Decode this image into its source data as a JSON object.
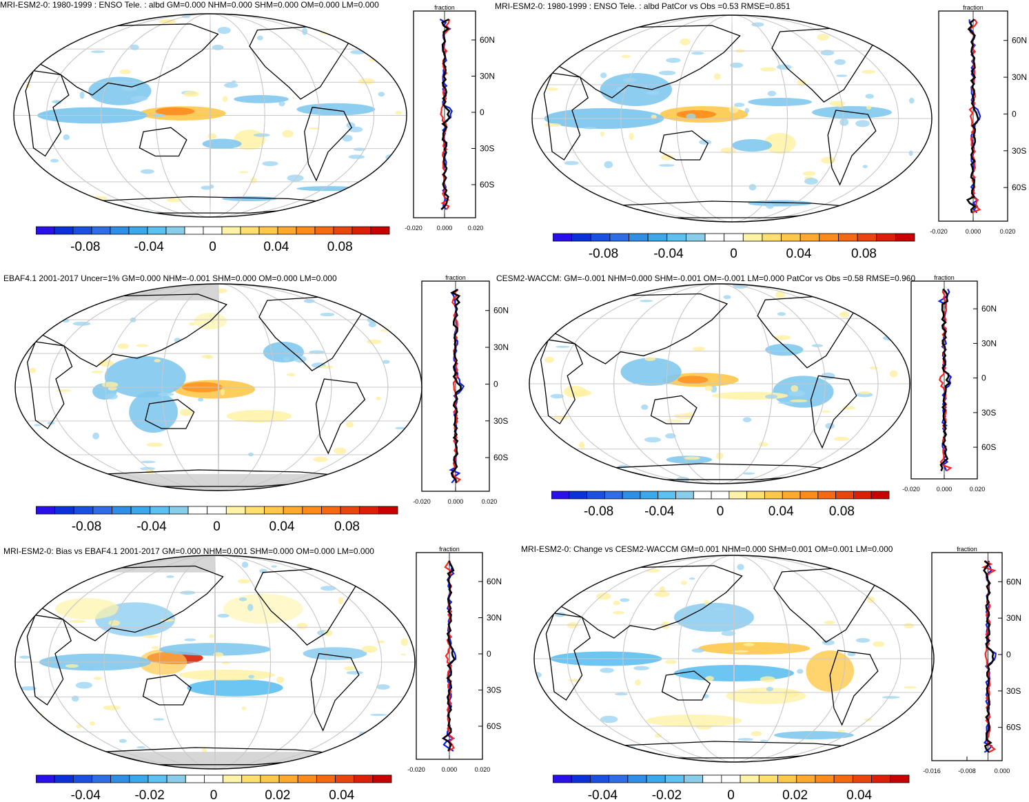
{
  "panels": [
    {
      "title": "MRI-ESM2-0: 1980-1999 : ENSO Tele. : albd GM=0.000 NHM=0.000 SHM=0.000 OM=0.000 LM=0.000",
      "colorbar_labels": [
        "-0.08",
        "-0.04",
        "0",
        "0.04",
        "0.08"
      ],
      "profile": {
        "label": "fraction",
        "lat_ticks": [
          "60N",
          "30N",
          "0",
          "30S",
          "60S"
        ],
        "x_ticks": [
          "-0.020",
          "0.000",
          "0.020"
        ]
      }
    },
    {
      "title": "MRI-ESM2-0: 1980-1999 : ENSO Tele. : albd PatCor vs Obs =0.53 RMSE=0.851",
      "colorbar_labels": [
        "-0.08",
        "-0.04",
        "0",
        "0.04",
        "0.08"
      ],
      "profile": {
        "label": "fraction",
        "lat_ticks": [
          "60N",
          "30N",
          "0",
          "30S",
          "60S"
        ],
        "x_ticks": [
          "-0.020",
          "0.000",
          "0.020"
        ]
      }
    },
    {
      "title": "EBAF4.1 2001-2017 Uncer=1% GM=0.000 NHM=-0.001 SHM=0.000 OM=0.000 LM=0.000",
      "colorbar_labels": [
        "-0.08",
        "-0.04",
        "0",
        "0.04",
        "0.08"
      ],
      "profile": {
        "label": "fraction",
        "lat_ticks": [
          "60N",
          "30N",
          "0",
          "30S",
          "60S"
        ],
        "x_ticks": [
          "-0.020",
          "0.000",
          "0.020"
        ]
      }
    },
    {
      "title": "CESM2-WACCM: GM=-0.001 NHM=0.000 SHM=-0.001 OM=-0.001 LM=0.000 PatCor vs Obs =0.58 RMSE=0.960",
      "colorbar_labels": [
        "-0.08",
        "-0.04",
        "0",
        "0.04",
        "0.08"
      ],
      "profile": {
        "label": "fraction",
        "lat_ticks": [
          "60N",
          "30N",
          "0",
          "30S",
          "60S"
        ],
        "x_ticks": [
          "-0.020",
          "0.000",
          "0.020"
        ]
      }
    },
    {
      "title": "MRI-ESM2-0: Bias vs EBAF4.1 2001-2017 GM=0.000 NHM=0.001 SHM=0.000 OM=0.000 LM=0.000",
      "colorbar_labels": [
        "-0.04",
        "-0.02",
        "0",
        "0.02",
        "0.04"
      ],
      "profile": {
        "label": "fraction",
        "lat_ticks": [
          "60N",
          "30N",
          "0",
          "30S",
          "60S"
        ],
        "x_ticks": [
          "-0.020",
          "0.000",
          "0.020"
        ]
      }
    },
    {
      "title": "MRI-ESM2-0: Change vs CESM2-WACCM GM=0.001 NHM=0.000 SHM=0.001 OM=0.001 LM=0.000",
      "colorbar_labels": [
        "-0.04",
        "-0.02",
        "0",
        "0.02",
        "0.04"
      ],
      "profile": {
        "label": "fraction",
        "lat_ticks": [
          "60N",
          "30N",
          "0",
          "30S",
          "60S"
        ],
        "x_ticks": [
          "-0.016",
          "-0.008",
          "0.000"
        ]
      }
    }
  ],
  "colorbar_colors": [
    "#2a10e8",
    "#0a32d8",
    "#1a50e0",
    "#2f6de6",
    "#2f8fe6",
    "#3aa8ea",
    "#5cc0f0",
    "#88cdea",
    "#ffffff",
    "#ffffff",
    "#fff3a8",
    "#ffdf6e",
    "#ffc84a",
    "#ffaa2e",
    "#ff8c1a",
    "#f56a10",
    "#e8460c",
    "#dc2008",
    "#c80000"
  ],
  "profile_colors": {
    "model": "#ff2020",
    "obs": "#1020e0",
    "other": "#000000"
  }
}
